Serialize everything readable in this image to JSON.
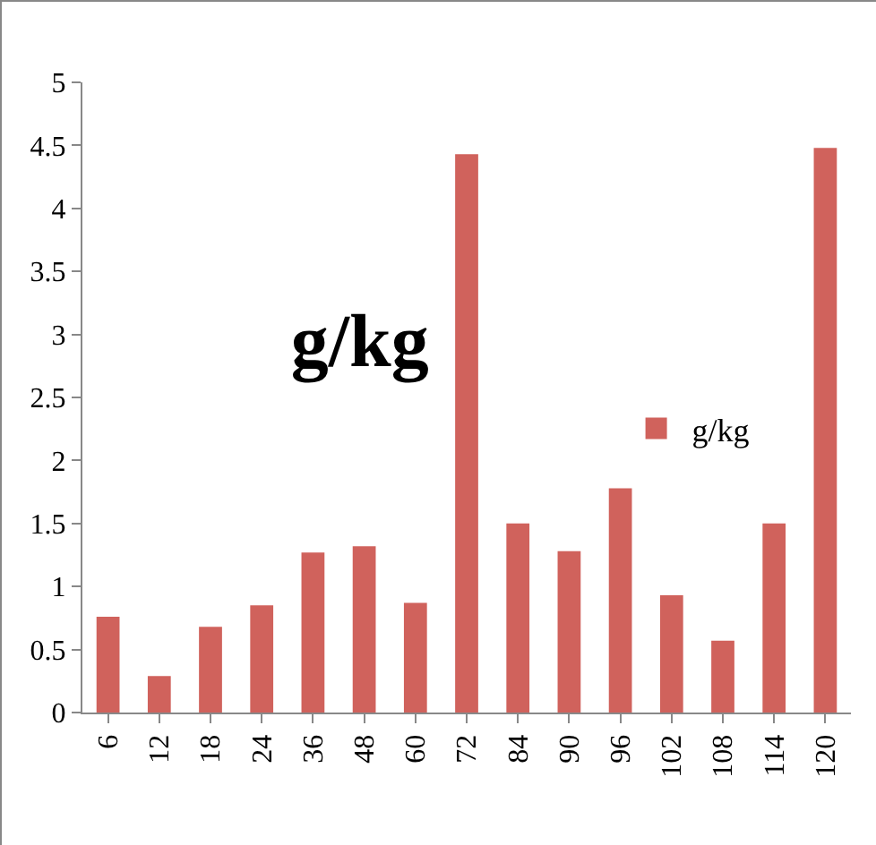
{
  "chart_data": {
    "type": "bar",
    "title": "g/kg",
    "categories": [
      "6",
      "12",
      "18",
      "24",
      "36",
      "48",
      "60",
      "72",
      "84",
      "90",
      "96",
      "102",
      "108",
      "114",
      "120"
    ],
    "series": [
      {
        "name": "g/kg",
        "color": "#d0625c",
        "values": [
          0.76,
          0.29,
          0.68,
          0.85,
          1.27,
          1.32,
          0.87,
          4.43,
          1.5,
          1.28,
          1.78,
          0.93,
          0.57,
          1.5,
          4.48
        ]
      }
    ],
    "ylim": [
      0,
      5
    ],
    "yticks": [
      0,
      0.5,
      1,
      1.5,
      2,
      2.5,
      3,
      3.5,
      4,
      4.5,
      5
    ],
    "grid": false,
    "legend": "right"
  }
}
